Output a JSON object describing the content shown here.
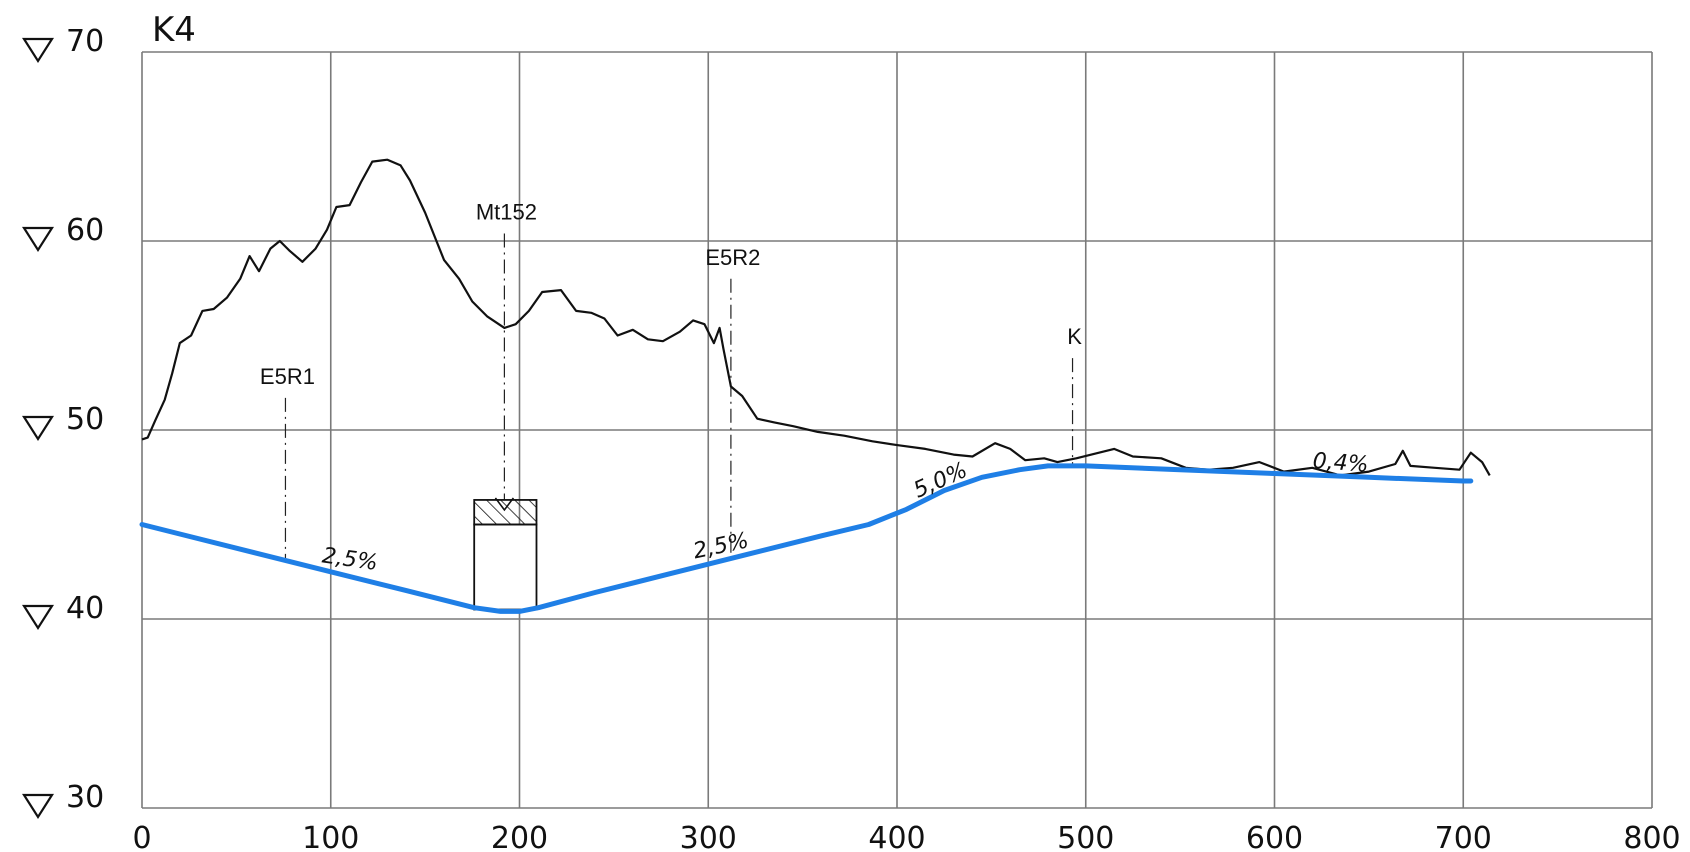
{
  "chart_data": {
    "type": "line",
    "title": "K4",
    "xlabel": "",
    "ylabel": "",
    "xlim": [
      0,
      800
    ],
    "ylim": [
      30,
      70
    ],
    "x_ticks": [
      "0",
      "100",
      "200",
      "300",
      "400",
      "500",
      "600",
      "700",
      "800"
    ],
    "y_ticks": [
      "30",
      "40",
      "50",
      "60",
      "70"
    ],
    "grid": true,
    "series": [
      {
        "name": "",
        "color": "#111111",
        "points": [
          [
            0,
            49.5
          ],
          [
            3,
            49.6
          ],
          [
            7,
            50.5
          ],
          [
            12,
            51.6
          ],
          [
            16,
            53.0
          ],
          [
            20,
            54.6
          ],
          [
            26,
            55.0
          ],
          [
            32,
            56.3
          ],
          [
            38,
            56.4
          ],
          [
            45,
            57.0
          ],
          [
            52,
            58.0
          ],
          [
            57,
            59.2
          ],
          [
            62,
            58.4
          ],
          [
            68,
            59.6
          ],
          [
            73,
            60.0
          ],
          [
            78,
            59.5
          ],
          [
            85,
            58.9
          ],
          [
            92,
            59.6
          ],
          [
            98,
            60.6
          ],
          [
            103,
            61.8
          ],
          [
            110,
            61.9
          ],
          [
            116,
            63.1
          ],
          [
            122,
            64.2
          ],
          [
            130,
            64.3
          ],
          [
            137,
            64.0
          ],
          [
            142,
            63.2
          ],
          [
            150,
            61.5
          ],
          [
            160,
            59.0
          ],
          [
            168,
            58.0
          ],
          [
            175,
            56.8
          ],
          [
            183,
            56.0
          ],
          [
            192,
            55.4
          ],
          [
            198,
            55.6
          ],
          [
            205,
            56.3
          ],
          [
            212,
            57.3
          ],
          [
            222,
            57.4
          ],
          [
            230,
            56.3
          ],
          [
            238,
            56.2
          ],
          [
            245,
            55.9
          ],
          [
            252,
            55.0
          ],
          [
            260,
            55.3
          ],
          [
            268,
            54.8
          ],
          [
            276,
            54.7
          ],
          [
            285,
            55.2
          ],
          [
            292,
            55.8
          ],
          [
            298,
            55.6
          ],
          [
            303,
            54.6
          ],
          [
            306,
            55.4
          ],
          [
            308,
            54.3
          ],
          [
            312,
            52.3
          ],
          [
            318,
            51.8
          ],
          [
            326,
            50.6
          ],
          [
            335,
            50.4
          ],
          [
            345,
            50.2
          ],
          [
            358,
            49.9
          ],
          [
            372,
            49.7
          ],
          [
            387,
            49.4
          ],
          [
            400,
            49.2
          ],
          [
            415,
            49.0
          ],
          [
            430,
            48.7
          ],
          [
            440,
            48.6
          ],
          [
            452,
            49.3
          ],
          [
            460,
            49.0
          ],
          [
            468,
            48.4
          ],
          [
            478,
            48.5
          ],
          [
            485,
            48.3
          ],
          [
            495,
            48.5
          ],
          [
            503,
            48.7
          ],
          [
            515,
            49.0
          ],
          [
            525,
            48.6
          ],
          [
            540,
            48.5
          ],
          [
            553,
            48.0
          ],
          [
            565,
            47.9
          ],
          [
            578,
            48.0
          ],
          [
            592,
            48.3
          ],
          [
            605,
            47.8
          ],
          [
            620,
            48.0
          ],
          [
            635,
            47.6
          ],
          [
            650,
            47.8
          ],
          [
            664,
            48.2
          ],
          [
            668,
            48.9
          ],
          [
            672,
            48.1
          ],
          [
            685,
            48.0
          ],
          [
            698,
            47.9
          ],
          [
            704,
            48.8
          ],
          [
            710,
            48.3
          ],
          [
            714,
            47.6
          ]
        ]
      },
      {
        "name": "",
        "color": "#1f7fe6",
        "points": [
          [
            0,
            45.0
          ],
          [
            20,
            44.5
          ],
          [
            60,
            43.5
          ],
          [
            100,
            42.5
          ],
          [
            140,
            41.5
          ],
          [
            176,
            40.6
          ],
          [
            190,
            40.4
          ],
          [
            200,
            40.4
          ],
          [
            210,
            40.6
          ],
          [
            240,
            41.4
          ],
          [
            280,
            42.4
          ],
          [
            320,
            43.4
          ],
          [
            360,
            44.4
          ],
          [
            385,
            45.0
          ],
          [
            405,
            45.8
          ],
          [
            425,
            46.8
          ],
          [
            445,
            47.5
          ],
          [
            465,
            47.9
          ],
          [
            480,
            48.1
          ],
          [
            500,
            48.1
          ],
          [
            550,
            47.9
          ],
          [
            600,
            47.7
          ],
          [
            650,
            47.5
          ],
          [
            700,
            47.3
          ],
          [
            704,
            47.3
          ]
        ]
      }
    ],
    "markers": [
      {
        "label": "E5R1",
        "x": 76,
        "y_top": 51.7,
        "y_bottom": 43.2
      },
      {
        "label": "Mt152",
        "x": 192,
        "y_top": 60.4,
        "y_bottom": 46.3
      },
      {
        "label": "E5R2",
        "x": 312,
        "y_top": 58.0,
        "y_bottom": 43.5
      },
      {
        "label": "K",
        "x": 493,
        "y_top": 53.8,
        "y_bottom": 48.1
      }
    ],
    "slopes": [
      {
        "label": "2,5%",
        "x": 95,
        "y": 43.0,
        "angle": 8
      },
      {
        "label": "2,5%",
        "x": 293,
        "y": 43.2,
        "angle": -12
      },
      {
        "label": "5,0%",
        "x": 411,
        "y": 46.4,
        "angle": -24
      },
      {
        "label": "0,4%",
        "x": 620,
        "y": 48.0,
        "angle": 4
      }
    ],
    "structure": {
      "x_left": 176,
      "x_right": 209,
      "y_bottom": 40.5,
      "y_top": 46.3,
      "y_hatch_bottom": 45.0
    }
  }
}
